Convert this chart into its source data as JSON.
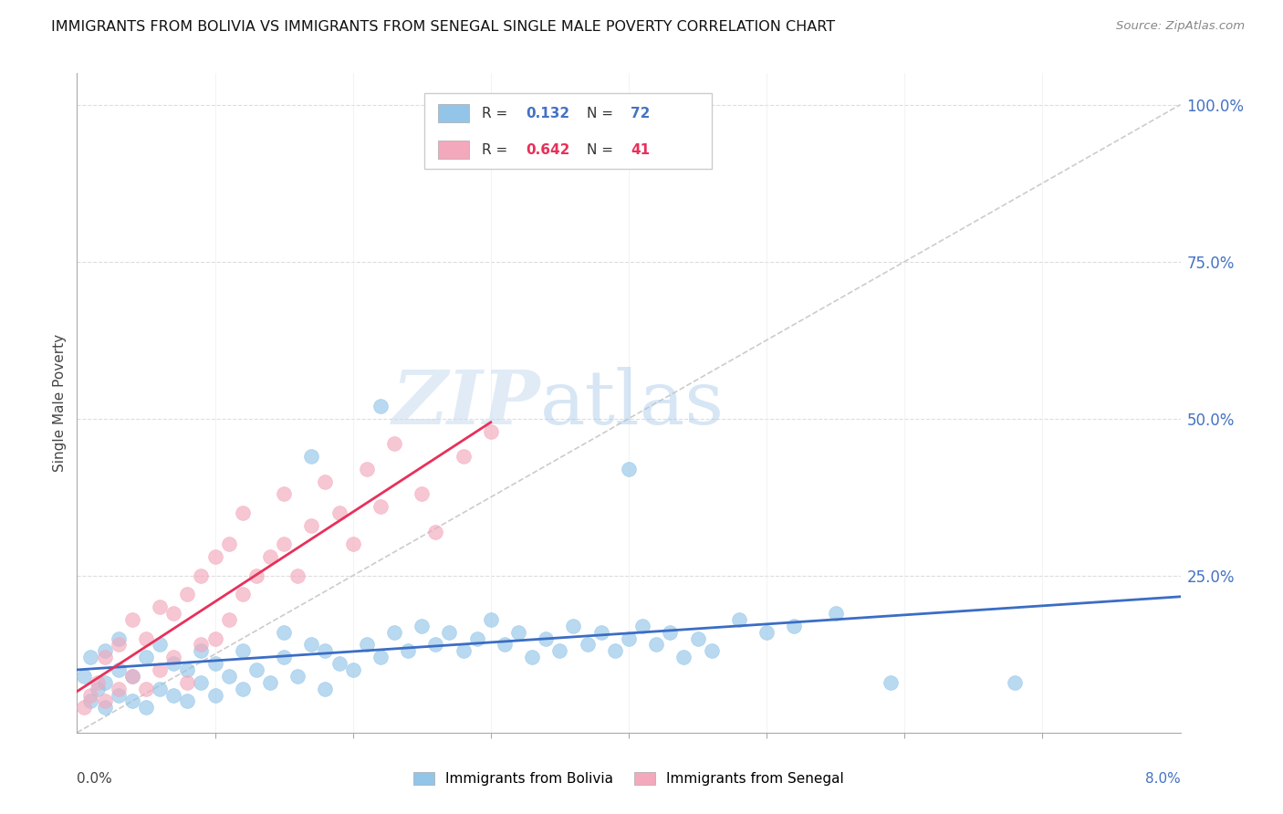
{
  "title": "IMMIGRANTS FROM BOLIVIA VS IMMIGRANTS FROM SENEGAL SINGLE MALE POVERTY CORRELATION CHART",
  "source": "Source: ZipAtlas.com",
  "ylabel": "Single Male Poverty",
  "xlim": [
    0.0,
    0.08
  ],
  "ylim": [
    0.0,
    1.05
  ],
  "bolivia_color": "#92C5E8",
  "senegal_color": "#F4A8BC",
  "bolivia_R": 0.132,
  "bolivia_N": 72,
  "senegal_R": 0.642,
  "senegal_N": 41,
  "diagonal_color": "#CCCCCC",
  "bolivia_line_color": "#3B6DC4",
  "senegal_line_color": "#E8305A",
  "right_label_color": "#4472C4",
  "bolivia_x": [
    0.0005,
    0.001,
    0.001,
    0.0015,
    0.002,
    0.002,
    0.002,
    0.003,
    0.003,
    0.003,
    0.004,
    0.004,
    0.005,
    0.005,
    0.006,
    0.006,
    0.007,
    0.007,
    0.008,
    0.008,
    0.009,
    0.009,
    0.01,
    0.01,
    0.011,
    0.012,
    0.012,
    0.013,
    0.014,
    0.015,
    0.015,
    0.016,
    0.017,
    0.018,
    0.018,
    0.019,
    0.02,
    0.021,
    0.022,
    0.023,
    0.024,
    0.025,
    0.026,
    0.027,
    0.028,
    0.029,
    0.03,
    0.031,
    0.032,
    0.033,
    0.034,
    0.035,
    0.036,
    0.037,
    0.038,
    0.039,
    0.04,
    0.041,
    0.042,
    0.043,
    0.044,
    0.045,
    0.046,
    0.048,
    0.05,
    0.052,
    0.059,
    0.068,
    0.055,
    0.04,
    0.022,
    0.017
  ],
  "bolivia_y": [
    0.09,
    0.05,
    0.12,
    0.07,
    0.04,
    0.08,
    0.13,
    0.06,
    0.1,
    0.15,
    0.05,
    0.09,
    0.04,
    0.12,
    0.07,
    0.14,
    0.06,
    0.11,
    0.05,
    0.1,
    0.08,
    0.13,
    0.06,
    0.11,
    0.09,
    0.07,
    0.13,
    0.1,
    0.08,
    0.12,
    0.16,
    0.09,
    0.14,
    0.07,
    0.13,
    0.11,
    0.1,
    0.14,
    0.12,
    0.16,
    0.13,
    0.17,
    0.14,
    0.16,
    0.13,
    0.15,
    0.18,
    0.14,
    0.16,
    0.12,
    0.15,
    0.13,
    0.17,
    0.14,
    0.16,
    0.13,
    0.15,
    0.17,
    0.14,
    0.16,
    0.12,
    0.15,
    0.13,
    0.18,
    0.16,
    0.17,
    0.08,
    0.08,
    0.19,
    0.42,
    0.52,
    0.44
  ],
  "senegal_x": [
    0.0005,
    0.001,
    0.0015,
    0.002,
    0.002,
    0.003,
    0.003,
    0.004,
    0.004,
    0.005,
    0.005,
    0.006,
    0.006,
    0.007,
    0.007,
    0.008,
    0.008,
    0.009,
    0.009,
    0.01,
    0.01,
    0.011,
    0.011,
    0.012,
    0.012,
    0.013,
    0.014,
    0.015,
    0.015,
    0.016,
    0.017,
    0.018,
    0.019,
    0.02,
    0.021,
    0.022,
    0.023,
    0.025,
    0.026,
    0.028,
    0.03
  ],
  "senegal_y": [
    0.04,
    0.06,
    0.08,
    0.05,
    0.12,
    0.07,
    0.14,
    0.09,
    0.18,
    0.07,
    0.15,
    0.1,
    0.2,
    0.12,
    0.19,
    0.08,
    0.22,
    0.14,
    0.25,
    0.15,
    0.28,
    0.18,
    0.3,
    0.22,
    0.35,
    0.25,
    0.28,
    0.3,
    0.38,
    0.25,
    0.33,
    0.4,
    0.35,
    0.3,
    0.42,
    0.36,
    0.46,
    0.38,
    0.32,
    0.44,
    0.48
  ]
}
